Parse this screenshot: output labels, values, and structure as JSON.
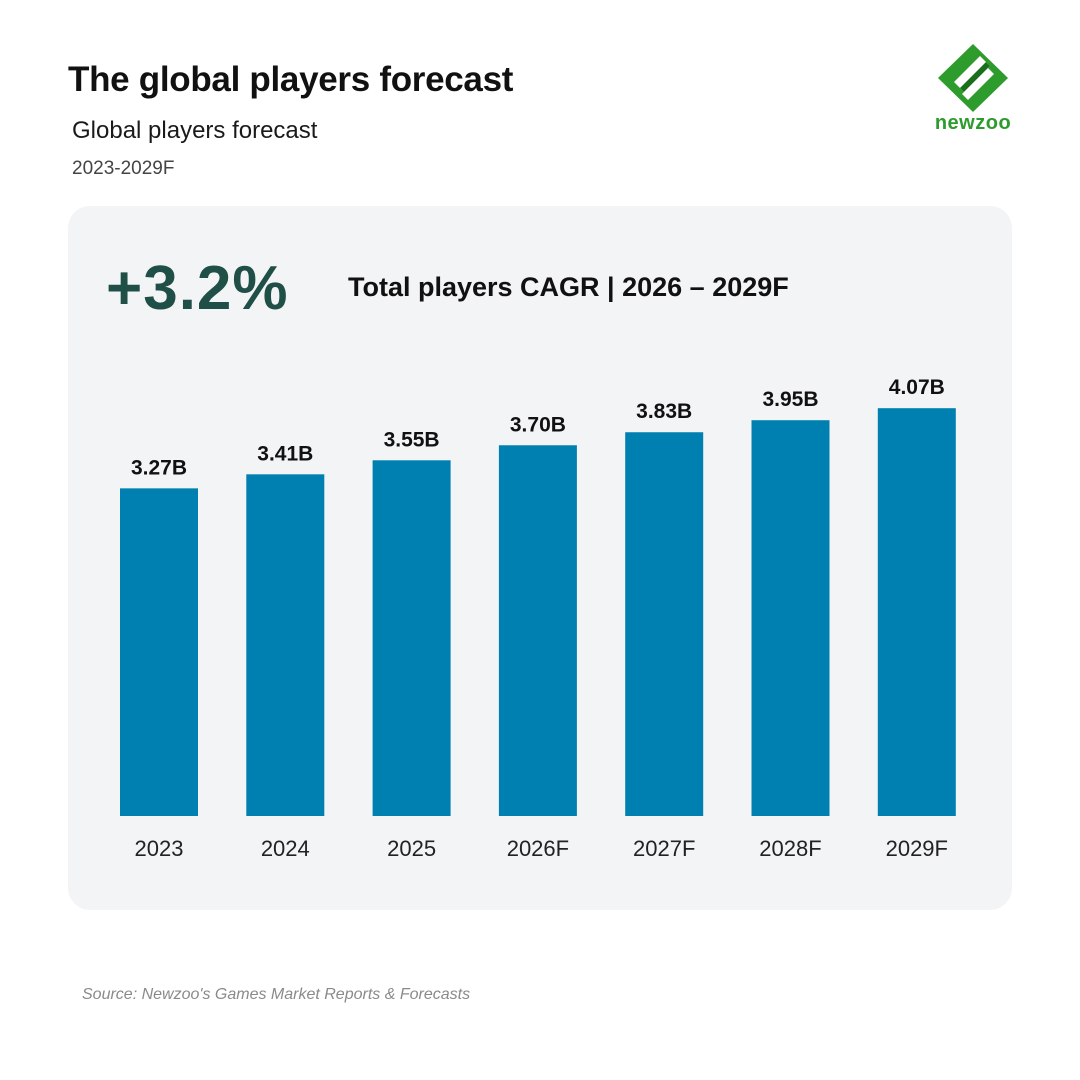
{
  "header": {
    "title": "The global players forecast",
    "subtitle": "Global players forecast",
    "date_range": "2023-2029F"
  },
  "brand": {
    "name": "newzoo",
    "logo_icon": "newzoo-logo-icon",
    "colors": {
      "green": "#2d9c2d",
      "dark_green": "#1b6e1b"
    }
  },
  "highlight": {
    "value": "+3.2%",
    "label": "Total players CAGR |  2026 – 2029F",
    "color": "#1f4f47"
  },
  "chart_data": {
    "type": "bar",
    "categories": [
      "2023",
      "2024",
      "2025",
      "2026F",
      "2027F",
      "2028F",
      "2029F"
    ],
    "values": [
      3.27,
      3.41,
      3.55,
      3.7,
      3.83,
      3.95,
      4.07
    ],
    "data_labels": [
      "3.27B",
      "3.41B",
      "3.55B",
      "3.70B",
      "3.83B",
      "3.95B",
      "4.07B"
    ],
    "bar_color": "#0080b0",
    "grid": false,
    "legend": "none"
  },
  "footer": {
    "source": "Source: Newzoo's Games Market Reports & Forecasts"
  }
}
